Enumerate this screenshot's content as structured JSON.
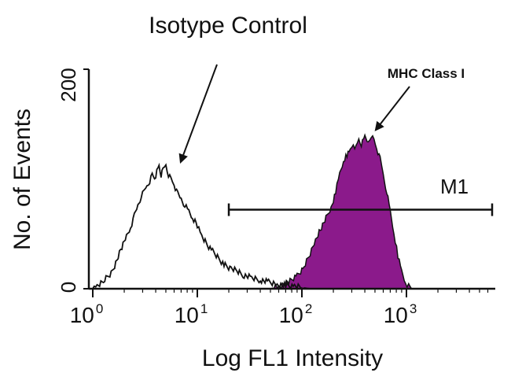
{
  "chart_data": {
    "type": "histogram",
    "title": "Isotype Control",
    "xlabel": "Log FL1 Intensity",
    "ylabel": "No. of Events",
    "x_scale": "log",
    "xlim": [
      1,
      10000
    ],
    "ylim": [
      0,
      200
    ],
    "x_ticks": [
      {
        "value": 1,
        "base": "10",
        "exp": "0"
      },
      {
        "value": 10,
        "base": "10",
        "exp": "1"
      },
      {
        "value": 100,
        "base": "10",
        "exp": "2"
      },
      {
        "value": 1000,
        "base": "10",
        "exp": "3"
      }
    ],
    "y_ticks": [
      {
        "value": 0,
        "label": "0"
      },
      {
        "value": 200,
        "label": "200"
      }
    ],
    "series": [
      {
        "name": "Isotype Control",
        "filled": false,
        "color": "#111111",
        "points": [
          [
            1.0,
            0
          ],
          [
            1.1,
            3
          ],
          [
            1.3,
            8
          ],
          [
            1.5,
            14
          ],
          [
            1.7,
            26
          ],
          [
            1.9,
            38
          ],
          [
            2.1,
            48
          ],
          [
            2.3,
            56
          ],
          [
            2.5,
            66
          ],
          [
            2.7,
            76
          ],
          [
            2.9,
            84
          ],
          [
            3.1,
            88
          ],
          [
            3.3,
            94
          ],
          [
            3.5,
            98
          ],
          [
            3.7,
            104
          ],
          [
            3.9,
            101
          ],
          [
            4.1,
            106
          ],
          [
            4.3,
            112
          ],
          [
            4.5,
            103
          ],
          [
            4.7,
            108
          ],
          [
            5.0,
            113
          ],
          [
            5.3,
            104
          ],
          [
            5.6,
            100
          ],
          [
            6.0,
            95
          ],
          [
            6.5,
            86
          ],
          [
            7.0,
            82
          ],
          [
            7.6,
            76
          ],
          [
            8.3,
            70
          ],
          [
            9.0,
            64
          ],
          [
            10,
            58
          ],
          [
            11,
            48
          ],
          [
            12.5,
            40
          ],
          [
            14,
            34
          ],
          [
            16,
            28
          ],
          [
            18,
            22
          ],
          [
            21,
            18
          ],
          [
            24,
            16
          ],
          [
            28,
            12
          ],
          [
            33,
            10
          ],
          [
            40,
            8
          ],
          [
            48,
            6
          ],
          [
            58,
            4
          ],
          [
            70,
            3
          ],
          [
            85,
            2
          ],
          [
            100,
            1
          ],
          [
            120,
            0
          ]
        ]
      },
      {
        "name": "MHC Class I",
        "filled": true,
        "color": "#8b1a8b",
        "points": [
          [
            50,
            0
          ],
          [
            60,
            2
          ],
          [
            75,
            6
          ],
          [
            90,
            12
          ],
          [
            105,
            20
          ],
          [
            120,
            32
          ],
          [
            135,
            44
          ],
          [
            150,
            54
          ],
          [
            170,
            64
          ],
          [
            190,
            74
          ],
          [
            210,
            88
          ],
          [
            230,
            104
          ],
          [
            250,
            116
          ],
          [
            270,
            122
          ],
          [
            290,
            126
          ],
          [
            310,
            132
          ],
          [
            330,
            128
          ],
          [
            350,
            136
          ],
          [
            370,
            131
          ],
          [
            400,
            138
          ],
          [
            430,
            134
          ],
          [
            460,
            140
          ],
          [
            490,
            135
          ],
          [
            520,
            128
          ],
          [
            560,
            118
          ],
          [
            600,
            104
          ],
          [
            650,
            88
          ],
          [
            700,
            70
          ],
          [
            760,
            50
          ],
          [
            830,
            30
          ],
          [
            900,
            16
          ],
          [
            980,
            6
          ],
          [
            1050,
            2
          ],
          [
            1120,
            0
          ]
        ]
      }
    ],
    "gate": {
      "name": "M1",
      "x_start": 20,
      "x_end": 8000,
      "y": 72
    },
    "annotations": [
      {
        "text": "Isotype Control",
        "points_to": {
          "x": 6.5,
          "y": 106
        }
      },
      {
        "text": "MHC Class I",
        "points_to": {
          "x": 550,
          "y": 138
        }
      }
    ]
  }
}
